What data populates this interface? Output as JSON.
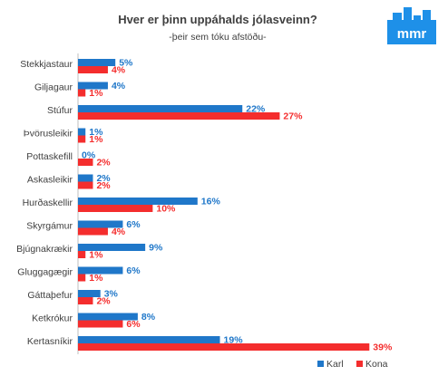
{
  "colors": {
    "karl": "#1F77C9",
    "kona": "#F42D2D",
    "logo": "#1E90E8",
    "axis": "#bfbfbf",
    "text": "#404040"
  },
  "logo": {
    "text": "mmr"
  },
  "chart_data": {
    "type": "bar",
    "orientation": "horizontal",
    "title": "Hver er þinn uppáhalds jólasveinn?",
    "subtitle": "-þeir sem tóku afstöðu-",
    "categories": [
      "Stekkjastaur",
      "Giljagaur",
      "Stúfur",
      "Þvörusleikir",
      "Pottaskefill",
      "Askasleikir",
      "Hurðaskellir",
      "Skyrgámur",
      "Bjúgnakrækir",
      "Gluggagægir",
      "Gáttaþefur",
      "Ketkrókur",
      "Kertasníkir"
    ],
    "series": [
      {
        "name": "Karl",
        "values": [
          5,
          4,
          22,
          1,
          0,
          2,
          16,
          6,
          9,
          6,
          3,
          8,
          19
        ],
        "labels": [
          "5%",
          "4%",
          "22%",
          "1%",
          "0%",
          "2%",
          "16%",
          "6%",
          "9%",
          "6%",
          "3%",
          "8%",
          "19%"
        ]
      },
      {
        "name": "Kona",
        "values": [
          4,
          1,
          27,
          1,
          2,
          2,
          10,
          4,
          1,
          1,
          2,
          6,
          39
        ],
        "labels": [
          "4%",
          "1%",
          "27%",
          "1%",
          "2%",
          "2%",
          "10%",
          "4%",
          "1%",
          "1%",
          "2%",
          "6%",
          "39%"
        ]
      }
    ],
    "xlim": [
      0,
      42
    ],
    "grid": false,
    "legend_position": "bottom-right"
  }
}
